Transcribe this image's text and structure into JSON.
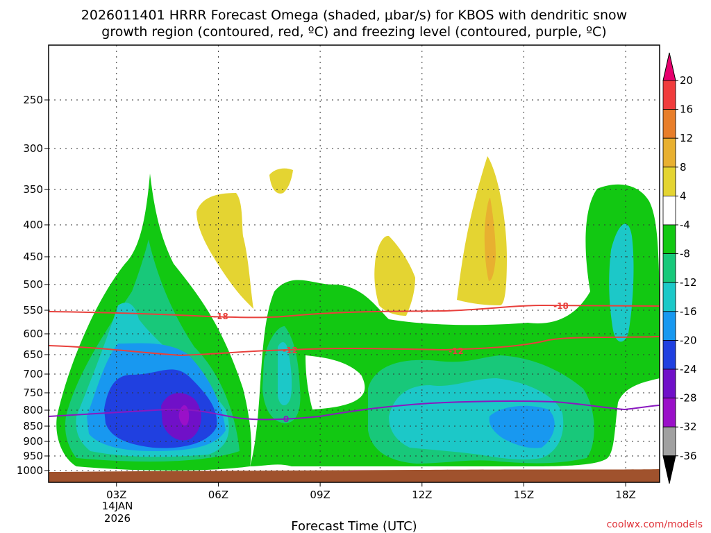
{
  "chart_data": {
    "type": "heatmap",
    "title_lines": [
      "2026011401 HRRR Forecast Omega (shaded, μbar/s) for KBOS with dendritic snow",
      "growth region (contoured, red, ºC) and freezing level (contoured, purple, ºC)"
    ],
    "xlabel": "Forecast Time (UTC)",
    "ylabel": "",
    "x_ticks": [
      "03Z",
      "06Z",
      "09Z",
      "12Z",
      "15Z",
      "18Z"
    ],
    "x_tick_date": [
      "14JAN",
      "2026"
    ],
    "xlim": [
      "01Z",
      "19Z"
    ],
    "y_scale": "pressure (hPa), decreasing upward",
    "y_ticks": [
      250,
      300,
      350,
      400,
      450,
      500,
      550,
      600,
      650,
      700,
      750,
      800,
      850,
      900,
      950,
      1000
    ],
    "colorbar": {
      "levels": [
        20,
        16,
        12,
        8,
        4,
        -4,
        -8,
        -12,
        -16,
        -20,
        -24,
        -28,
        -32,
        -36
      ],
      "colors": [
        "#e7006e",
        "#f03c3c",
        "#e87e2a",
        "#e8b030",
        "#e4d432",
        "#ffffff",
        "#12c812",
        "#18c87a",
        "#1cc8c8",
        "#1898f0",
        "#2040e0",
        "#7010c8",
        "#9a10c8",
        "#a0a0a0",
        "#000000"
      ]
    },
    "contours": [
      {
        "name": "-18",
        "color": "#e8403c",
        "label": "-18"
      },
      {
        "name": "-12",
        "color": "#e8403c",
        "label": "-12"
      },
      {
        "name": "0",
        "color": "#8a18c0",
        "label": "0"
      }
    ],
    "ground_color": "#a0522d"
  },
  "credit": "coolwx.com/models"
}
